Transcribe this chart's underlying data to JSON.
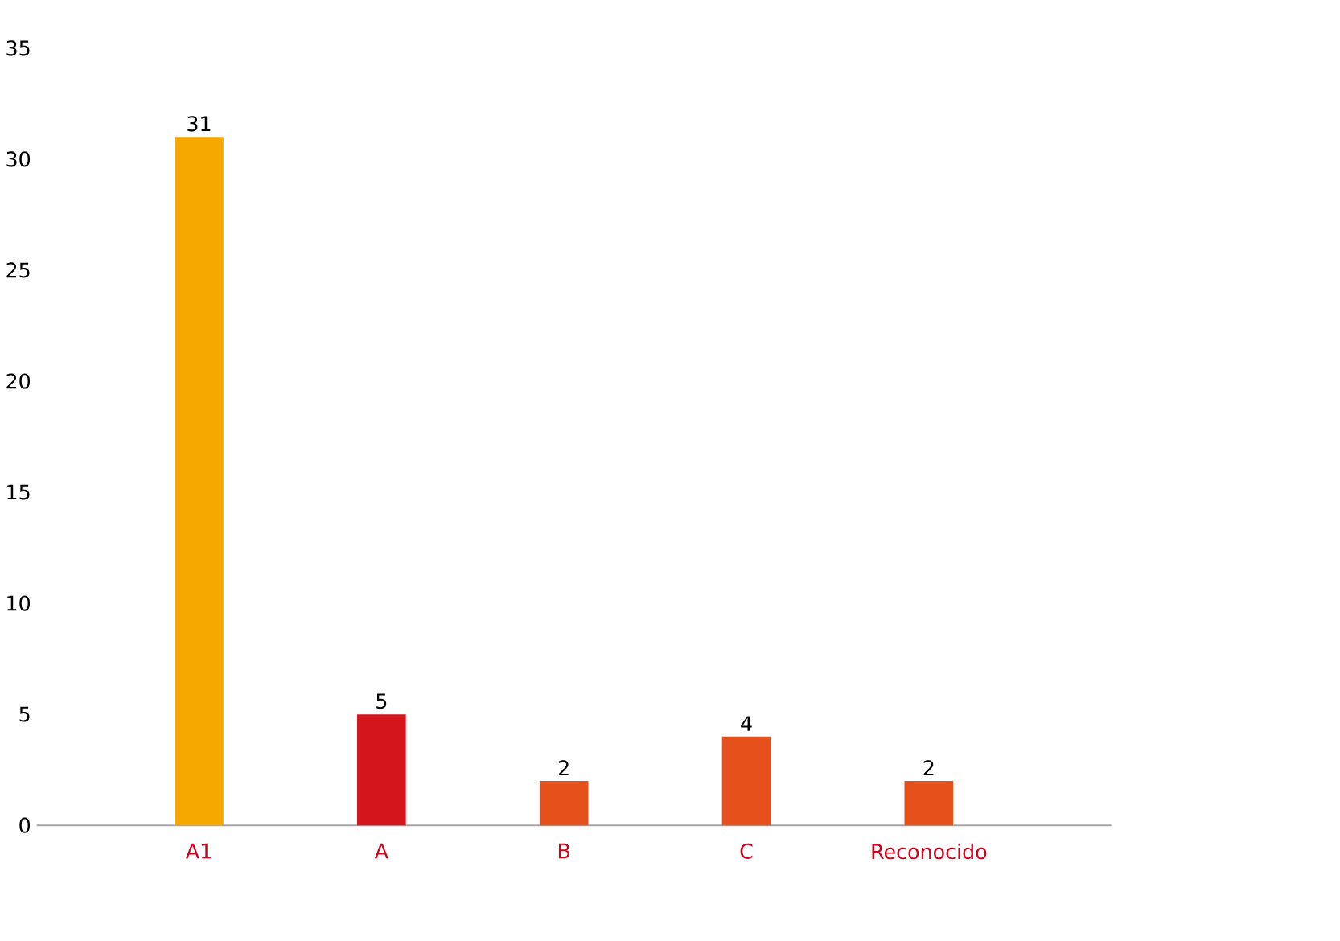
{
  "chart_data": {
    "type": "bar",
    "categories": [
      "A1",
      "A",
      "B",
      "C",
      "Reconocido"
    ],
    "values": [
      31,
      5,
      2,
      4,
      2
    ],
    "colors": [
      "#f5a800",
      "#d4161c",
      "#e6501a",
      "#e6501a",
      "#e6501a"
    ],
    "ylim": [
      0,
      35
    ],
    "yticks": [
      0,
      5,
      10,
      15,
      20,
      25,
      30,
      35
    ],
    "data_labels": true
  }
}
